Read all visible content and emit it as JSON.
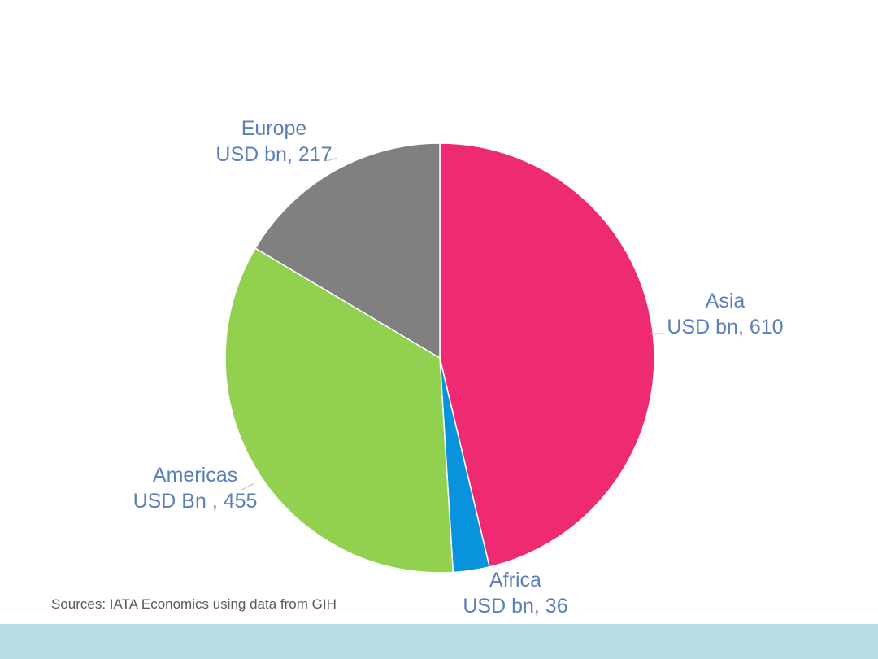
{
  "chart_data": {
    "type": "pie",
    "start_angle_deg": 0,
    "direction": "clockwise",
    "slices": [
      {
        "name": "Asia",
        "value_label": "USD bn, 610",
        "value": 610,
        "color": "#EE2A72"
      },
      {
        "name": "Africa",
        "value_label": "USD bn, 36",
        "value": 36,
        "color": "#0A93DD"
      },
      {
        "name": "Americas",
        "value_label": "USD Bn , 455",
        "value": 455,
        "color": "#92D050"
      },
      {
        "name": "Europe",
        "value_label": "USD bn, 217",
        "value": 217,
        "color": "#808080"
      }
    ],
    "label_color": "#5B7FB8"
  },
  "source_note": "Sources: IATA Economics using data from GIH",
  "footer": {
    "background": "#B9DEE6",
    "link_text": ""
  }
}
